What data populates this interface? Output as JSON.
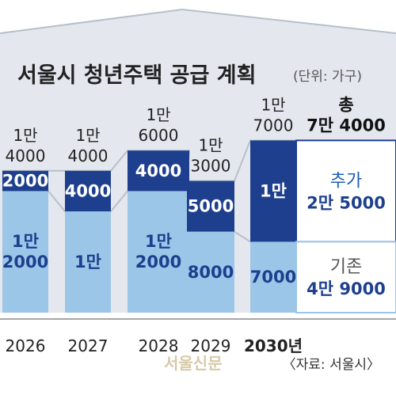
{
  "chart_data": {
    "type": "bar",
    "title": "서울시 청년주택 공급 계획",
    "unit": "(단위: 가구)",
    "categories": [
      "2026",
      "2027",
      "2028",
      "2029",
      "2030년"
    ],
    "series": [
      {
        "name": "기존",
        "values": [
          12000,
          10000,
          12000,
          8000,
          7000
        ],
        "labels": [
          [
            "1만",
            "2000"
          ],
          [
            "1만"
          ],
          [
            "1만",
            "2000"
          ],
          [
            "8000"
          ],
          [
            "7000"
          ]
        ]
      },
      {
        "name": "추가",
        "values": [
          2000,
          4000,
          4000,
          5000,
          10000
        ],
        "labels": [
          [
            "2000"
          ],
          [
            "4000"
          ],
          [
            "4000"
          ],
          [
            "5000"
          ],
          [
            "1만"
          ]
        ]
      }
    ],
    "totals": [
      14000,
      14000,
      16000,
      13000,
      17000
    ],
    "total_labels": [
      [
        "1만",
        "4000"
      ],
      [
        "1만",
        "4000"
      ],
      [
        "1만",
        "6000"
      ],
      [
        "1만",
        "3000"
      ],
      [
        "1만",
        "7000"
      ]
    ],
    "legend": {
      "total": {
        "name": "총",
        "value": "7만 4000"
      },
      "added": {
        "name": "추가",
        "value": "2만 5000"
      },
      "existing": {
        "name": "기존",
        "value": "4만 9000"
      }
    },
    "colors": {
      "existing": "#9cc6e8",
      "added": "#1d3f8e",
      "band": "#e4e8ee",
      "band_edge": "#b7bfca"
    },
    "source": "〈자료: 서울시〉",
    "watermark": "서울신문"
  }
}
